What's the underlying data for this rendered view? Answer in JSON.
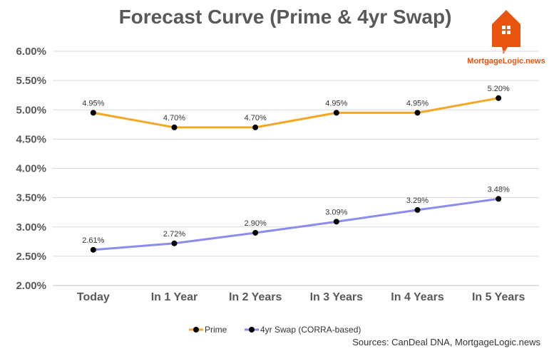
{
  "chart_data": {
    "type": "line",
    "title": "Forecast Curve (Prime & 4yr Swap)",
    "categories": [
      "Today",
      "In 1 Year",
      "In 2 Years",
      "In 3 Years",
      "In 4 Years",
      "In 5 Years"
    ],
    "series": [
      {
        "name": "Prime",
        "color": "#f5a623",
        "values": [
          4.95,
          4.7,
          4.7,
          4.95,
          4.95,
          5.2
        ],
        "labels": [
          "4.95%",
          "4.70%",
          "4.70%",
          "4.95%",
          "4.95%",
          "5.20%"
        ]
      },
      {
        "name": "4yr Swap (CORRA-based)",
        "color": "#8b8bf0",
        "values": [
          2.61,
          2.72,
          2.9,
          3.09,
          3.29,
          3.48
        ],
        "labels": [
          "2.61%",
          "2.72%",
          "2.90%",
          "3.09%",
          "3.29%",
          "3.48%"
        ]
      }
    ],
    "ylim": [
      2.0,
      6.0
    ],
    "yticks": [
      "2.00%",
      "2.50%",
      "3.00%",
      "3.50%",
      "4.00%",
      "4.50%",
      "5.00%",
      "5.50%",
      "6.00%"
    ],
    "ytick_values": [
      2.0,
      2.5,
      3.0,
      3.5,
      4.0,
      4.5,
      5.0,
      5.5,
      6.0
    ],
    "grid": true,
    "legend_position": "bottom",
    "marker_color": "#000000"
  },
  "logo": {
    "text": "MortgageLogic.news",
    "color": "#e8530e"
  },
  "source": "Sources: CanDeal DNA, MortgageLogic.news"
}
